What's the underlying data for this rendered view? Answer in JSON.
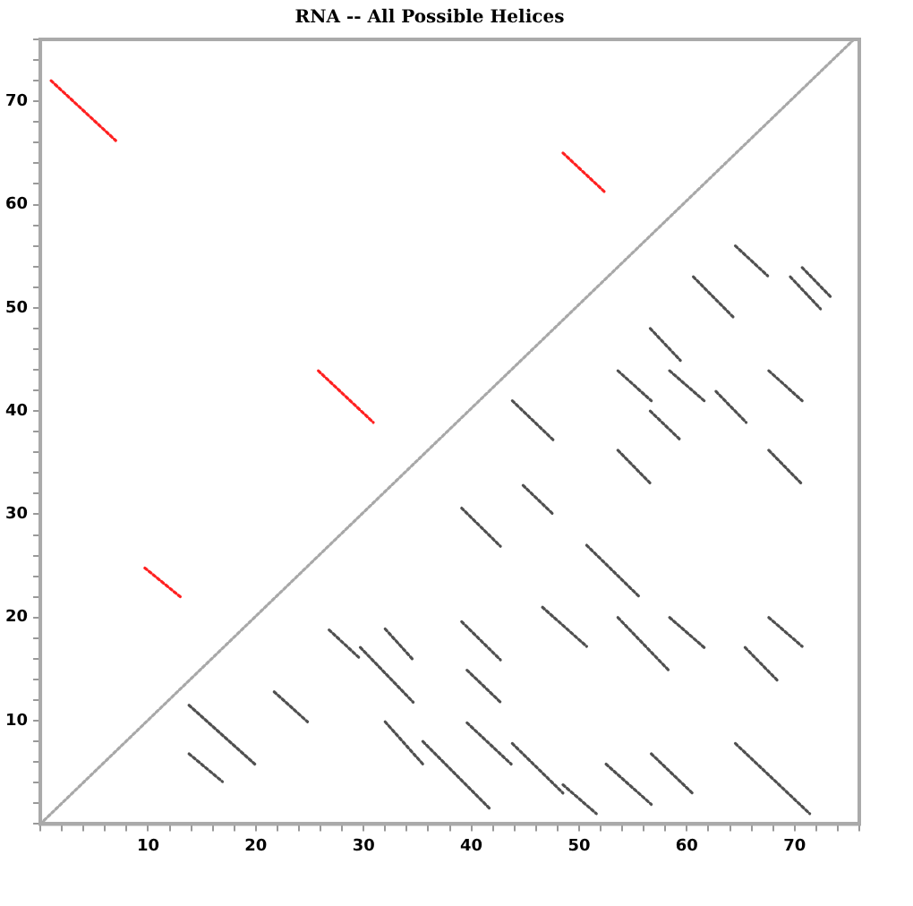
{
  "chart_data": {
    "type": "line",
    "title": "RNA -- All Possible Helices",
    "xlim": [
      0,
      76
    ],
    "ylim": [
      0,
      76
    ],
    "xticks": [
      {
        "value": 0,
        "label": null
      },
      {
        "value": 2,
        "label": null
      },
      {
        "value": 4,
        "label": null
      },
      {
        "value": 6,
        "label": null
      },
      {
        "value": 8,
        "label": null
      },
      10,
      {
        "value": 12,
        "label": null
      },
      {
        "value": 14,
        "label": null
      },
      {
        "value": 16,
        "label": null
      },
      {
        "value": 18,
        "label": null
      },
      20,
      {
        "value": 22,
        "label": null
      },
      {
        "value": 24,
        "label": null
      },
      {
        "value": 26,
        "label": null
      },
      {
        "value": 28,
        "label": null
      },
      30,
      {
        "value": 32,
        "label": null
      },
      {
        "value": 34,
        "label": null
      },
      {
        "value": 36,
        "label": null
      },
      {
        "value": 38,
        "label": null
      },
      40,
      {
        "value": 42,
        "label": null
      },
      {
        "value": 44,
        "label": null
      },
      {
        "value": 46,
        "label": null
      },
      {
        "value": 48,
        "label": null
      },
      50,
      {
        "value": 52,
        "label": null
      },
      {
        "value": 54,
        "label": null
      },
      {
        "value": 56,
        "label": null
      },
      {
        "value": 58,
        "label": null
      },
      60,
      {
        "value": 62,
        "label": null
      },
      {
        "value": 64,
        "label": null
      },
      {
        "value": 66,
        "label": null
      },
      {
        "value": 68,
        "label": null
      },
      70,
      {
        "value": 72,
        "label": null
      },
      {
        "value": 74,
        "label": null
      },
      {
        "value": 76,
        "label": null
      }
    ],
    "yticks": [
      {
        "value": 0,
        "label": null
      },
      {
        "value": 2,
        "label": null
      },
      {
        "value": 4,
        "label": null
      },
      {
        "value": 6,
        "label": null
      },
      {
        "value": 8,
        "label": null
      },
      10,
      {
        "value": 12,
        "label": null
      },
      {
        "value": 14,
        "label": null
      },
      {
        "value": 16,
        "label": null
      },
      {
        "value": 18,
        "label": null
      },
      20,
      {
        "value": 22,
        "label": null
      },
      {
        "value": 24,
        "label": null
      },
      {
        "value": 26,
        "label": null
      },
      {
        "value": 28,
        "label": null
      },
      30,
      {
        "value": 32,
        "label": null
      },
      {
        "value": 34,
        "label": null
      },
      {
        "value": 36,
        "label": null
      },
      {
        "value": 38,
        "label": null
      },
      40,
      {
        "value": 42,
        "label": null
      },
      {
        "value": 44,
        "label": null
      },
      {
        "value": 46,
        "label": null
      },
      {
        "value": 48,
        "label": null
      },
      50,
      {
        "value": 52,
        "label": null
      },
      {
        "value": 54,
        "label": null
      },
      {
        "value": 56,
        "label": null
      },
      {
        "value": 58,
        "label": null
      },
      60,
      {
        "value": 62,
        "label": null
      },
      {
        "value": 64,
        "label": null
      },
      {
        "value": 66,
        "label": null
      },
      {
        "value": 68,
        "label": null
      },
      70,
      {
        "value": 72,
        "label": null
      },
      {
        "value": 74,
        "label": null
      },
      {
        "value": 76,
        "label": null
      }
    ],
    "grid": false,
    "legend": false,
    "marker": "none",
    "line_style": "dotted",
    "series": [
      {
        "color": "#a8a8a8",
        "x": [
          0,
          75.5
        ],
        "values": [
          0,
          76
        ]
      },
      {
        "color": "#ff2020",
        "x": [
          1,
          7
        ],
        "values": [
          72,
          66.2
        ]
      },
      {
        "color": "#ff2020",
        "x": [
          25.8,
          30.9
        ],
        "values": [
          43.9,
          38.9
        ]
      },
      {
        "color": "#ff2020",
        "x": [
          9.7,
          13
        ],
        "values": [
          24.8,
          22
        ]
      },
      {
        "color": "#ff2020",
        "x": [
          48.5,
          52.5
        ],
        "values": [
          65,
          61.1
        ]
      },
      {
        "color": "#505050",
        "x": [
          64.5,
          67.5
        ],
        "values": [
          56,
          53.1
        ]
      },
      {
        "color": "#505050",
        "x": [
          70.7,
          73.4
        ],
        "values": [
          53.9,
          51
        ]
      },
      {
        "color": "#505050",
        "x": [
          69.6,
          72.4
        ],
        "values": [
          53,
          49.9
        ]
      },
      {
        "color": "#505050",
        "x": [
          60.6,
          64.4
        ],
        "values": [
          53,
          49
        ]
      },
      {
        "color": "#505050",
        "x": [
          56.6,
          59.4
        ],
        "values": [
          48,
          44.9
        ]
      },
      {
        "color": "#505050",
        "x": [
          53.6,
          56.7
        ],
        "values": [
          43.9,
          41
        ]
      },
      {
        "color": "#505050",
        "x": [
          58.4,
          61.6
        ],
        "values": [
          43.9,
          41
        ]
      },
      {
        "color": "#505050",
        "x": [
          62.7,
          65.5
        ],
        "values": [
          41.9,
          38.9
        ]
      },
      {
        "color": "#505050",
        "x": [
          67.6,
          70.7
        ],
        "values": [
          43.9,
          41
        ]
      },
      {
        "color": "#505050",
        "x": [
          56.6,
          59.4
        ],
        "values": [
          40,
          37.2
        ]
      },
      {
        "color": "#505050",
        "x": [
          43.8,
          47.6
        ],
        "values": [
          41,
          37.2
        ]
      },
      {
        "color": "#505050",
        "x": [
          53.6,
          56.7
        ],
        "values": [
          36.2,
          32.9
        ]
      },
      {
        "color": "#505050",
        "x": [
          67.6,
          70.7
        ],
        "values": [
          36.2,
          32.9
        ]
      },
      {
        "color": "#505050",
        "x": [
          44.8,
          47.6
        ],
        "values": [
          32.8,
          30
        ]
      },
      {
        "color": "#505050",
        "x": [
          39.1,
          42.7
        ],
        "values": [
          30.6,
          26.9
        ]
      },
      {
        "color": "#505050",
        "x": [
          50.7,
          55.6
        ],
        "values": [
          27,
          22
        ]
      },
      {
        "color": "#505050",
        "x": [
          46.6,
          50.7
        ],
        "values": [
          21,
          17.2
        ]
      },
      {
        "color": "#505050",
        "x": [
          39.1,
          42.7
        ],
        "values": [
          19.6,
          15.9
        ]
      },
      {
        "color": "#505050",
        "x": [
          53.6,
          58.3
        ],
        "values": [
          20,
          14.9
        ]
      },
      {
        "color": "#505050",
        "x": [
          58.4,
          61.6
        ],
        "values": [
          20,
          17.1
        ]
      },
      {
        "color": "#505050",
        "x": [
          67.6,
          70.7
        ],
        "values": [
          20,
          17.2
        ]
      },
      {
        "color": "#505050",
        "x": [
          65.4,
          68.5
        ],
        "values": [
          17.1,
          13.8
        ]
      },
      {
        "color": "#505050",
        "x": [
          39.6,
          42.7
        ],
        "values": [
          14.9,
          11.8
        ]
      },
      {
        "color": "#505050",
        "x": [
          39.6,
          43.7
        ],
        "values": [
          9.8,
          5.8
        ]
      },
      {
        "color": "#505050",
        "x": [
          43.8,
          48.5
        ],
        "values": [
          7.8,
          3
        ]
      },
      {
        "color": "#505050",
        "x": [
          48.5,
          51.6
        ],
        "values": [
          3.8,
          1
        ]
      },
      {
        "color": "#505050",
        "x": [
          52.5,
          56.7
        ],
        "values": [
          5.8,
          1.9
        ]
      },
      {
        "color": "#505050",
        "x": [
          56.7,
          60.6
        ],
        "values": [
          6.8,
          2.9
        ]
      },
      {
        "color": "#505050",
        "x": [
          64.5,
          71.4
        ],
        "values": [
          7.8,
          1
        ]
      },
      {
        "color": "#505050",
        "x": [
          35.5,
          41.7
        ],
        "values": [
          8,
          1.5
        ]
      },
      {
        "color": "#505050",
        "x": [
          13.8,
          19.9
        ],
        "values": [
          11.5,
          5.8
        ]
      },
      {
        "color": "#505050",
        "x": [
          13.8,
          16.9
        ],
        "values": [
          6.8,
          4.1
        ]
      },
      {
        "color": "#505050",
        "x": [
          21.7,
          24.8
        ],
        "values": [
          12.8,
          9.9
        ]
      },
      {
        "color": "#505050",
        "x": [
          26.8,
          29.7
        ],
        "values": [
          18.8,
          16
        ]
      },
      {
        "color": "#505050",
        "x": [
          29.7,
          34.6
        ],
        "values": [
          17.1,
          11.8
        ]
      },
      {
        "color": "#505050",
        "x": [
          32,
          34.6
        ],
        "values": [
          18.9,
          15.9
        ]
      },
      {
        "color": "#505050",
        "x": [
          32,
          35.5
        ],
        "values": [
          9.9,
          5.8
        ]
      }
    ]
  }
}
